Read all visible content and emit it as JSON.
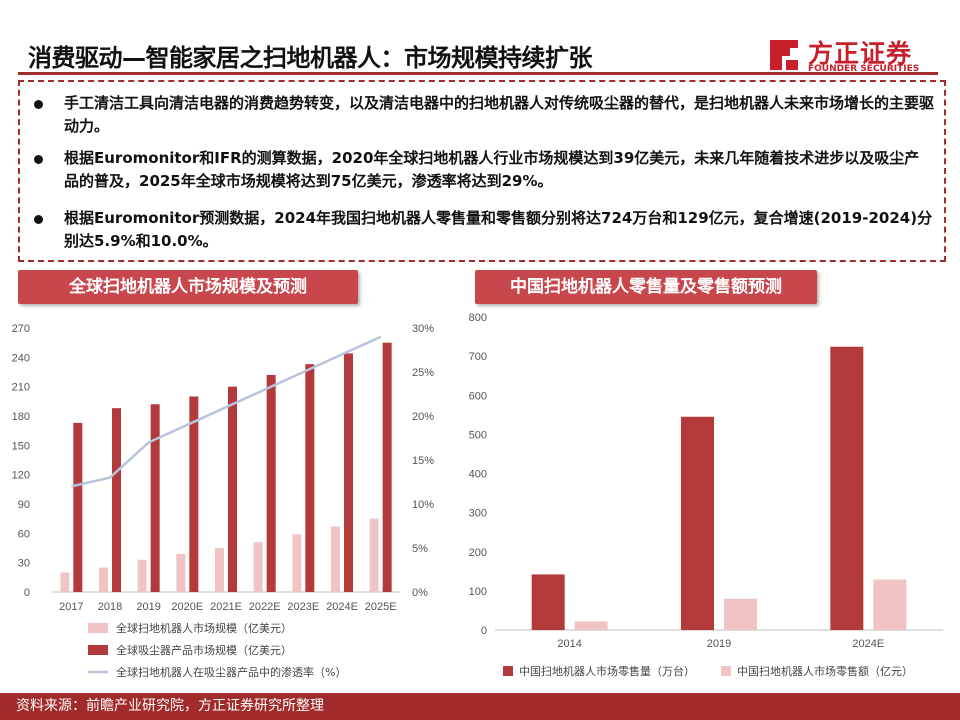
{
  "header": {
    "title": "消费驱动—智能家居之扫地机器人：市场规模持续扩张",
    "logo_cn": "方正证券",
    "logo_en": "FOUNDER SECURITIES"
  },
  "bullets": [
    "手工清洁工具向清洁电器的消费趋势转变，以及清洁电器中的扫地机器人对传统吸尘器的替代，是扫地机器人未来市场增长的主要驱动力。",
    "根据Euromonitor和IFR的测算数据，2020年全球扫地机器人行业市场规模达到39亿美元，未来几年随着技术进步以及吸尘产品的普及，2025年全球市场规模将达到75亿美元，渗透率将达到29%。",
    "根据Euromonitor预测数据，2024年我国扫地机器人零售量和零售额分别将达724万台和129亿元，复合增速(2019-2024)分别达5.9%和10.0%。"
  ],
  "panels": {
    "left_title": "全球扫地机器人市场规模及预测",
    "right_title": "中国扫地机器人零售量及零售额预测"
  },
  "chart_data": [
    {
      "type": "bar",
      "categories": [
        "2017",
        "2018",
        "2019",
        "2020E",
        "2021E",
        "2022E",
        "2023E",
        "2024E",
        "2025E"
      ],
      "series": [
        {
          "name": "全球扫地机器人市场规模（亿美元）",
          "axis": "left",
          "color": "#f0c4c4",
          "values": [
            20,
            25,
            33,
            39,
            45,
            51,
            59,
            67,
            75
          ]
        },
        {
          "name": "全球吸尘器产品市场规模（亿美元）",
          "axis": "left",
          "color": "#b33a3a",
          "values": [
            173,
            188,
            192,
            200,
            210,
            222,
            233,
            244,
            255
          ]
        },
        {
          "name": "全球扫地机器人在吸尘器产品中的渗透率（%）",
          "axis": "right",
          "type": "line",
          "color": "#b8c4dc",
          "values": [
            12,
            13,
            17,
            19,
            21,
            23,
            25,
            27,
            29
          ]
        }
      ],
      "y_ticks": [
        "0",
        "30",
        "60",
        "90",
        "120",
        "150",
        "180",
        "210",
        "240",
        "270"
      ],
      "y2_ticks": [
        "0%",
        "5%",
        "10%",
        "15%",
        "20%",
        "25%",
        "30%"
      ],
      "ylim": [
        0,
        270
      ],
      "y2lim": [
        0,
        30
      ],
      "legend": "bottom"
    },
    {
      "type": "bar",
      "categories": [
        "2014",
        "2019",
        "2024E"
      ],
      "series": [
        {
          "name": "中国扫地机器人市场零售量（万台）",
          "color": "#b33a3a",
          "values": [
            142,
            545,
            724
          ]
        },
        {
          "name": "中国扫地机器人市场零售额（亿元）",
          "color": "#f0c4c4",
          "values": [
            22,
            80,
            129
          ]
        }
      ],
      "y_ticks": [
        "0",
        "100",
        "200",
        "300",
        "400",
        "500",
        "600",
        "700",
        "800"
      ],
      "ylim": [
        0,
        800
      ],
      "legend": "bottom"
    }
  ],
  "footer": {
    "source": "资料来源：前瞻产业研究院，方正证券研究所整理"
  }
}
